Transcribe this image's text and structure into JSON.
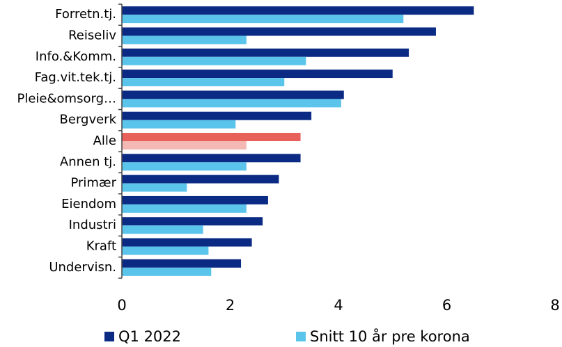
{
  "chart_data": {
    "type": "bar",
    "orientation": "horizontal",
    "categories": [
      "Forretn.tj.",
      "Reiseliv",
      "Info.&Komm.",
      "Fag.vit.tek.tj.",
      "Pleie&omsorg…",
      "Bergverk",
      "Alle",
      "Annen tj.",
      "Primær",
      "Eiendom",
      "Industri",
      "Kraft",
      "Undervisn."
    ],
    "series": [
      {
        "name": "Q1 2022",
        "color": "#0b2a84",
        "point_colors": [
          "#0b2a84",
          "#0b2a84",
          "#0b2a84",
          "#0b2a84",
          "#0b2a84",
          "#0b2a84",
          "#e8605a",
          "#0b2a84",
          "#0b2a84",
          "#0b2a84",
          "#0b2a84",
          "#0b2a84",
          "#0b2a84"
        ],
        "values": [
          6.5,
          5.8,
          5.3,
          5.0,
          4.1,
          3.5,
          3.3,
          3.3,
          2.9,
          2.7,
          2.6,
          2.4,
          2.2
        ]
      },
      {
        "name": "Snitt 10 år pre korona",
        "color": "#5bc4eb",
        "point_colors": [
          "#5bc4eb",
          "#5bc4eb",
          "#5bc4eb",
          "#5bc4eb",
          "#5bc4eb",
          "#5bc4eb",
          "#f4b8b5",
          "#5bc4eb",
          "#5bc4eb",
          "#5bc4eb",
          "#5bc4eb",
          "#5bc4eb",
          "#5bc4eb"
        ],
        "values": [
          5.2,
          2.3,
          3.4,
          3.0,
          4.05,
          2.1,
          2.3,
          2.3,
          1.2,
          2.3,
          1.5,
          1.6,
          1.65
        ]
      }
    ],
    "xlim": [
      0,
      8
    ],
    "xticks": [
      0,
      2,
      4,
      6,
      8
    ],
    "grid": false,
    "legend": "bottom"
  }
}
